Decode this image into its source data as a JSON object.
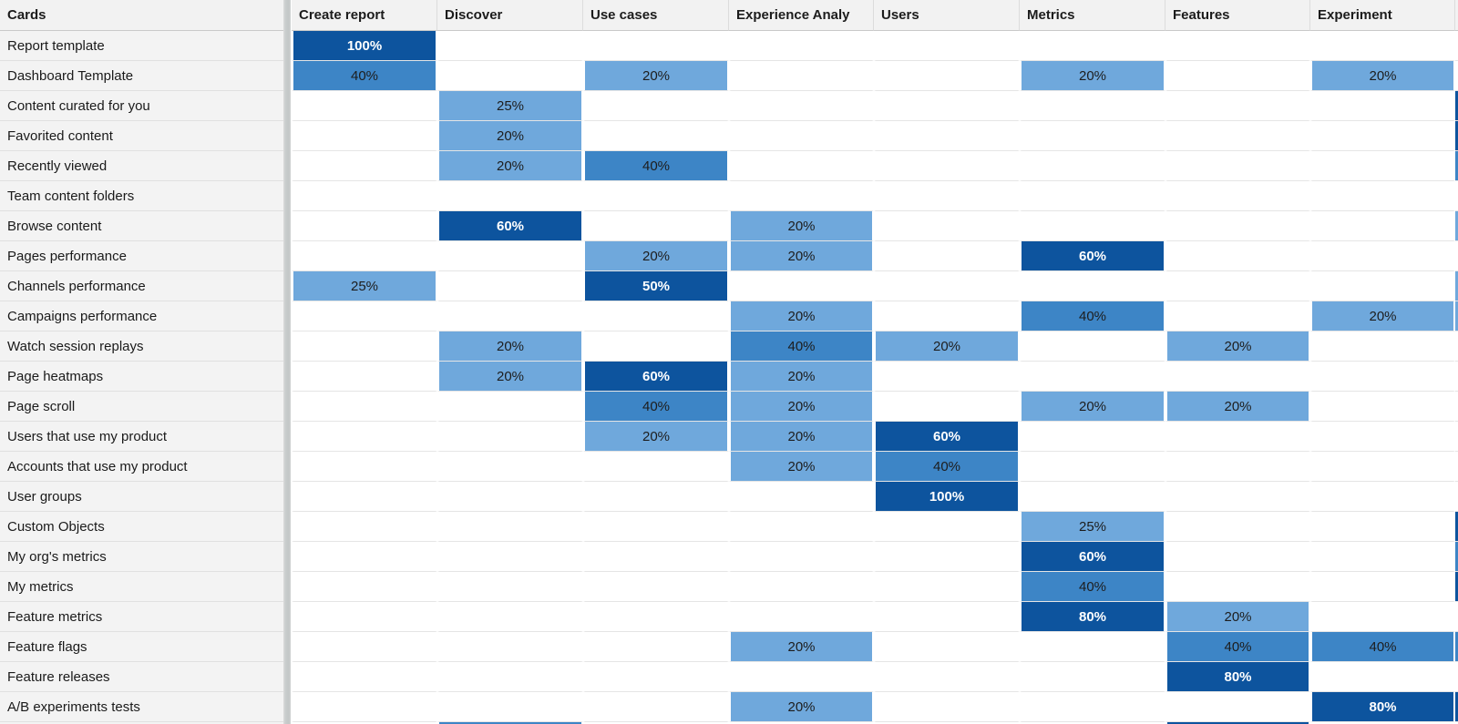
{
  "table": {
    "corner_label": "Cards",
    "columns": [
      "Create report",
      "Discover",
      "Use cases",
      "Experience Analy",
      "Users",
      "Metrics",
      "Features",
      "Experiment"
    ],
    "rows": [
      {
        "label": "Report template",
        "cells": [
          "100%",
          "",
          "",
          "",
          "",
          "",
          "",
          ""
        ],
        "sliver": ""
      },
      {
        "label": "Dashboard Template",
        "cells": [
          "40%",
          "",
          "20%",
          "",
          "",
          "20%",
          "",
          "20%"
        ],
        "sliver": ""
      },
      {
        "label": "Content curated for you",
        "cells": [
          "",
          "25%",
          "",
          "",
          "",
          "",
          "",
          ""
        ],
        "sliver": "high"
      },
      {
        "label": "Favorited content",
        "cells": [
          "",
          "20%",
          "",
          "",
          "",
          "",
          "",
          ""
        ],
        "sliver": "high"
      },
      {
        "label": "Recently viewed",
        "cells": [
          "",
          "20%",
          "40%",
          "",
          "",
          "",
          "",
          ""
        ],
        "sliver": "mid"
      },
      {
        "label": "Team content folders",
        "cells": [
          "",
          "",
          "",
          "",
          "",
          "",
          "",
          ""
        ],
        "sliver": ""
      },
      {
        "label": "Browse content",
        "cells": [
          "",
          "60%",
          "",
          "20%",
          "",
          "",
          "",
          ""
        ],
        "sliver": "low"
      },
      {
        "label": "Pages performance",
        "cells": [
          "",
          "",
          "20%",
          "20%",
          "",
          "60%",
          "",
          ""
        ],
        "sliver": ""
      },
      {
        "label": "Channels performance",
        "cells": [
          "25%",
          "",
          "50%",
          "",
          "",
          "",
          "",
          ""
        ],
        "sliver": "low"
      },
      {
        "label": "Campaigns performance",
        "cells": [
          "",
          "",
          "",
          "20%",
          "",
          "40%",
          "",
          "20%"
        ],
        "sliver": "low"
      },
      {
        "label": "Watch session replays",
        "cells": [
          "",
          "20%",
          "",
          "40%",
          "20%",
          "",
          "20%",
          ""
        ],
        "sliver": ""
      },
      {
        "label": "Page heatmaps",
        "cells": [
          "",
          "20%",
          "60%",
          "20%",
          "",
          "",
          "",
          ""
        ],
        "sliver": ""
      },
      {
        "label": "Page scroll",
        "cells": [
          "",
          "",
          "40%",
          "20%",
          "",
          "20%",
          "20%",
          ""
        ],
        "sliver": ""
      },
      {
        "label": "Users that use my product",
        "cells": [
          "",
          "",
          "20%",
          "20%",
          "60%",
          "",
          "",
          ""
        ],
        "sliver": ""
      },
      {
        "label": "Accounts that use my product",
        "cells": [
          "",
          "",
          "",
          "20%",
          "40%",
          "",
          "",
          ""
        ],
        "sliver": ""
      },
      {
        "label": "User groups",
        "cells": [
          "",
          "",
          "",
          "",
          "100%",
          "",
          "",
          ""
        ],
        "sliver": ""
      },
      {
        "label": "Custom Objects",
        "cells": [
          "",
          "",
          "",
          "",
          "",
          "25%",
          "",
          ""
        ],
        "sliver": "high"
      },
      {
        "label": "My org's metrics",
        "cells": [
          "",
          "",
          "",
          "",
          "",
          "60%",
          "",
          ""
        ],
        "sliver": "mid"
      },
      {
        "label": "My metrics",
        "cells": [
          "",
          "",
          "",
          "",
          "",
          "40%",
          "",
          ""
        ],
        "sliver": "high"
      },
      {
        "label": "Feature metrics",
        "cells": [
          "",
          "",
          "",
          "",
          "",
          "80%",
          "20%",
          ""
        ],
        "sliver": ""
      },
      {
        "label": "Feature flags",
        "cells": [
          "",
          "",
          "",
          "20%",
          "",
          "",
          "40%",
          "40%"
        ],
        "sliver": "mid"
      },
      {
        "label": "Feature releases",
        "cells": [
          "",
          "",
          "",
          "",
          "",
          "",
          "80%",
          ""
        ],
        "sliver": ""
      },
      {
        "label": "A/B experiments tests",
        "cells": [
          "",
          "",
          "",
          "20%",
          "",
          "",
          "",
          "80%"
        ],
        "sliver": "high"
      }
    ],
    "partial_bottom_row": {
      "cells": [
        "",
        "mid",
        "",
        "",
        "",
        "",
        "high",
        ""
      ],
      "sliver": ""
    }
  },
  "heat_colors": {
    "low": "#6fa8dc",
    "mid": "#3d85c6",
    "high": "#0d549e"
  },
  "tone_thresholds": {
    "high_min": 50,
    "mid_min": 40
  }
}
